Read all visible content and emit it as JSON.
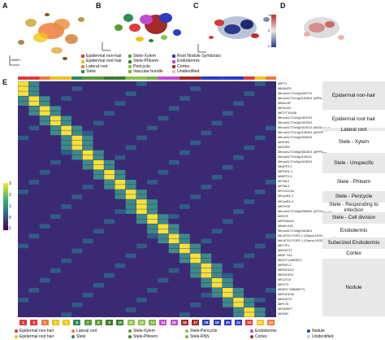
{
  "panels": {
    "a": "A",
    "b": "B",
    "c": "C",
    "d": "D",
    "e": "E"
  },
  "umap_labels": {
    "axis_x": "UMAP1",
    "axis_y": "UMAP2",
    "cluster_numbers": [
      "21",
      "1",
      "20",
      "2",
      "7",
      "22",
      "8",
      "23",
      "24",
      "13",
      "10",
      "19",
      "16",
      "15",
      "6",
      "14",
      "17",
      "5",
      "4",
      "18"
    ]
  },
  "legend_b": [
    {
      "label": "Epidermal non-hair",
      "color": "#e03a3a"
    },
    {
      "label": "Stele-Xylem",
      "color": "#5a9e32"
    },
    {
      "label": "Root Nodule Symbiosis",
      "color": "#2c3dbf"
    },
    {
      "label": "Epidermal root hair",
      "color": "#f0c419"
    },
    {
      "label": "Stele-Phloem",
      "color": "#3d7d2a"
    },
    {
      "label": "Endodermis",
      "color": "#c04bd0"
    },
    {
      "label": "Lateral root",
      "color": "#f07b3a"
    },
    {
      "label": "Pericycle",
      "color": "#8bc34a"
    },
    {
      "label": "Cortex",
      "color": "#a52a2a"
    },
    {
      "label": "Stele",
      "color": "#2e8b57"
    },
    {
      "label": "Vascular bundle",
      "color": "#7cb342"
    },
    {
      "label": "Unidentified",
      "color": "#cccccc"
    }
  ],
  "colorbar_c": {
    "ticks": [
      "10",
      "5",
      "0"
    ]
  },
  "heatmap_scale": {
    "ticks": [
      "3",
      "2",
      "1",
      "0",
      "-1"
    ]
  },
  "genes": [
    "MtPT1",
    "MtMAJR1",
    "MtrunA17Chr2g0300711",
    "MtrunA17Chr1g0152851 (ARSL2)",
    "MtRunHF",
    "MtPin100",
    "MtCPT10436",
    "MtrunA17Chr2g0304781",
    "MtrunA17Chr2g0322901",
    "MtrunA17Chr4g0315211 (NGAUT12)",
    "MtrunA17Chr1g0146161 (AGGBL4)",
    "MtrunA17Chr4g0326001",
    "MtSHR1",
    "MtSHR3",
    "MtrunA17Chr8g0361801 (MPPAM)",
    "MtrunA17Chr3g0148111",
    "MtrunA17Chr5g0415541",
    "MtNPF2.2",
    "MtPHO1.1",
    "MtNPF2.9",
    "MtTML2",
    "MtTML3",
    "MtYUCCA2",
    "MtCycB1-2",
    "MtCycB1-4",
    "MtPHO5",
    "MtrunA17Chr3g0098961 (AT2G16750)",
    "MtSCR",
    "MtPIN6A22",
    "MtbHLH15",
    "MtrunA17Chr8g0361801",
    "MtLATS2-PGR1.1 (Glyma.19G060801.1)",
    "MtLATS2-PGR1.1 (Glyma.19G060801.1)",
    "MtCYP1",
    "MtNODT2",
    "MtNF-YA1",
    "MtCD7 (MtDMI7)",
    "MtRNFL2",
    "MtENOD12",
    "MtENOD11",
    "MtCLE13",
    "MtPLT3",
    "MtNIN7 (MtMMIT7)",
    "MtENOD40",
    "MtNODT2",
    "MtPLT5",
    "MtSWEET",
    "MtGNR"
  ],
  "categories": [
    {
      "label": "Epidermal non-hair"
    },
    {
      "label": "Epidermal root hair"
    },
    {
      "label": "Lateral root"
    },
    {
      "label": "Stele - Xylem"
    },
    {
      "label": "Stele - Unspecific"
    },
    {
      "label": "Stele - Phloem"
    },
    {
      "label": "Stele - Pericycle"
    },
    {
      "label": "Stele - Responding to infection"
    },
    {
      "label": "Stele - Cell division"
    },
    {
      "label": "Endodermis"
    },
    {
      "label": "Suberized Endodermis"
    },
    {
      "label": "Cortex"
    },
    {
      "label": "Nodule"
    }
  ],
  "columns": [
    "1",
    "2",
    "3",
    "4",
    "5",
    "6",
    "7",
    "8",
    "9",
    "10",
    "11",
    "12",
    "13",
    "14",
    "15",
    "16",
    "17",
    "18",
    "19",
    "20",
    "21",
    "22",
    "23",
    "24"
  ],
  "column_colors": [
    "#e03a3a",
    "#e03a3a",
    "#f07b3a",
    "#f0c419",
    "#f0c419",
    "#2e8b57",
    "#5a9e32",
    "#5a9e32",
    "#3d7d2a",
    "#3d7d2a",
    "#8bc34a",
    "#8bc34a",
    "#7cb342",
    "#c04bd0",
    "#c04bd0",
    "#a52a2a",
    "#a52a2a",
    "#2c3dbf",
    "#2c3dbf",
    "#2c3dbf",
    "#2c3dbf",
    "#e03a3a",
    "#f0c419",
    "#f07b3a"
  ],
  "legend_e": [
    {
      "label": "Epidermal non-hair",
      "color": "#e03a3a"
    },
    {
      "label": "Lateral root",
      "color": "#f07b3a"
    },
    {
      "label": "Stele-Xylem",
      "color": "#5a9e32"
    },
    {
      "label": "Stele-Pericycle",
      "color": "#8bc34a"
    },
    {
      "label": "Endodermis",
      "color": "#c04bd0"
    },
    {
      "label": "Nodule",
      "color": "#2c3dbf"
    },
    {
      "label": "Epidermal root hair",
      "color": "#f0c419"
    },
    {
      "label": "Stele",
      "color": "#2e8b57"
    },
    {
      "label": "Stele-Phloem",
      "color": "#3d7d2a"
    },
    {
      "label": "Stele-RNS",
      "color": "#7cb342"
    },
    {
      "label": "Cortex",
      "color": "#a52a2a"
    },
    {
      "label": "Unidentified",
      "color": "#cccccc"
    }
  ]
}
